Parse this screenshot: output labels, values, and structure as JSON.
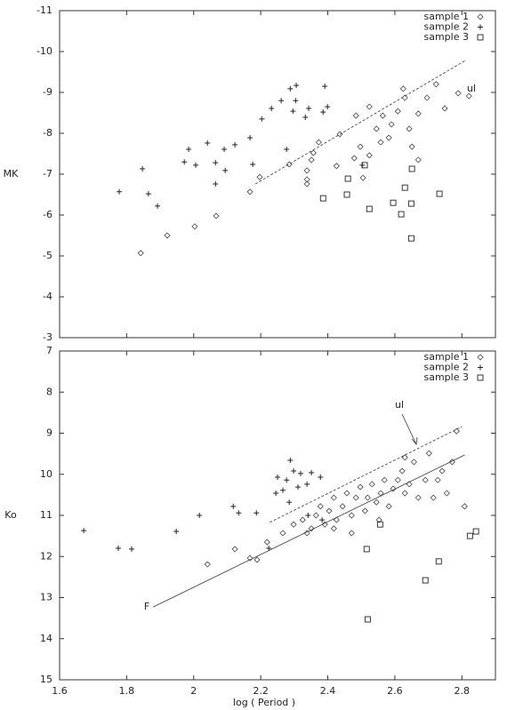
{
  "chart_data": [
    {
      "type": "scatter",
      "y_label": "MK",
      "xlim": [
        1.6,
        2.9
      ],
      "ylim": [
        -3,
        -11
      ],
      "yticks": [
        -11,
        -10,
        -9,
        -8,
        -7,
        -6,
        -5,
        -4,
        -3
      ],
      "legend": "top-right",
      "series": [
        {
          "name": "sample 1",
          "marker": "diamond",
          "color": "#444444",
          "x": [
            1.842,
            1.921,
            2.003,
            2.067,
            2.168,
            2.197,
            2.285,
            2.338,
            2.357,
            2.373,
            2.338,
            2.426,
            2.436,
            2.479,
            2.484,
            2.497,
            2.524,
            2.524,
            2.545,
            2.558,
            2.564,
            2.582,
            2.59,
            2.609,
            2.63,
            2.643,
            2.651,
            2.67,
            2.696,
            2.723,
            2.749,
            2.789,
            2.821,
            2.625,
            2.67,
            2.505,
            2.351,
            2.338
          ],
          "values": [
            -5.07,
            -5.5,
            -5.72,
            -5.98,
            -6.57,
            -6.93,
            -7.24,
            -7.09,
            -7.52,
            -7.78,
            -6.87,
            -7.2,
            -7.98,
            -7.39,
            -8.43,
            -7.67,
            -7.46,
            -8.65,
            -8.11,
            -7.78,
            -8.43,
            -7.89,
            -8.22,
            -8.54,
            -8.87,
            -8.11,
            -7.67,
            -8.48,
            -8.87,
            -9.2,
            -8.61,
            -8.98,
            -8.91,
            -9.09,
            -7.35,
            -6.91,
            -7.35,
            -6.76
          ]
        },
        {
          "name": "sample 2",
          "marker": "plus",
          "color": "#222222",
          "x": [
            1.778,
            1.847,
            1.865,
            1.892,
            1.972,
            1.985,
            2.006,
            2.041,
            2.065,
            2.065,
            2.091,
            2.094,
            2.123,
            2.168,
            2.176,
            2.203,
            2.232,
            2.261,
            2.277,
            2.288,
            2.296,
            2.304,
            2.306,
            2.333,
            2.343,
            2.386,
            2.391,
            2.399,
            2.503
          ],
          "values": [
            -6.57,
            -7.13,
            -6.52,
            -6.22,
            -7.3,
            -7.61,
            -7.22,
            -7.76,
            -7.28,
            -6.76,
            -7.61,
            -7.09,
            -7.72,
            -7.89,
            -7.24,
            -8.35,
            -8.61,
            -8.8,
            -7.61,
            -9.09,
            -8.54,
            -8.8,
            -9.17,
            -8.39,
            -8.61,
            -8.52,
            -9.15,
            -8.65,
            -7.22
          ]
        },
        {
          "name": "sample 3",
          "marker": "square",
          "color": "#222222",
          "x": [
            2.386,
            2.46,
            2.457,
            2.524,
            2.595,
            2.619,
            2.63,
            2.649,
            2.651,
            2.649,
            2.733,
            2.51
          ],
          "values": [
            -6.41,
            -6.89,
            -6.5,
            -6.15,
            -6.3,
            -6.02,
            -6.67,
            -6.28,
            -7.13,
            -5.43,
            -6.52,
            -7.22
          ]
        }
      ],
      "lines": [
        {
          "label": "ul",
          "dash": true,
          "x": [
            2.184,
            2.81
          ],
          "y": [
            -6.76,
            -9.78
          ]
        }
      ]
    },
    {
      "type": "scatter",
      "x_label": "log ( Period )",
      "y_label": "Ko",
      "xlim": [
        1.6,
        2.9
      ],
      "ylim": [
        15,
        7
      ],
      "xticks": [
        1.6,
        1.8,
        2.0,
        2.2,
        2.4,
        2.6,
        2.8
      ],
      "yticks": [
        7,
        8,
        9,
        10,
        11,
        12,
        13,
        14,
        15
      ],
      "legend": "top-right",
      "series": [
        {
          "name": "sample 1",
          "marker": "diamond",
          "color": "#444444",
          "x": [
            2.041,
            2.123,
            2.168,
            2.189,
            2.219,
            2.266,
            2.298,
            2.325,
            2.351,
            2.365,
            2.378,
            2.391,
            2.404,
            2.418,
            2.426,
            2.444,
            2.457,
            2.471,
            2.484,
            2.497,
            2.511,
            2.519,
            2.532,
            2.545,
            2.558,
            2.569,
            2.582,
            2.595,
            2.609,
            2.622,
            2.63,
            2.643,
            2.657,
            2.67,
            2.691,
            2.702,
            2.715,
            2.728,
            2.741,
            2.755,
            2.771,
            2.784,
            2.808,
            2.63,
            2.418,
            2.471,
            2.553,
            2.338
          ],
          "values": [
            12.19,
            11.82,
            12.04,
            12.08,
            11.65,
            11.43,
            11.22,
            11.11,
            11.32,
            11.0,
            10.78,
            11.22,
            10.89,
            10.57,
            11.11,
            10.78,
            10.46,
            11.0,
            10.57,
            10.31,
            10.89,
            10.57,
            10.24,
            10.68,
            10.46,
            10.14,
            10.78,
            10.35,
            10.14,
            9.92,
            10.46,
            10.24,
            9.7,
            10.57,
            10.14,
            9.49,
            10.57,
            10.14,
            9.92,
            10.46,
            9.7,
            8.95,
            10.78,
            9.59,
            11.32,
            11.43,
            11.11,
            11.43
          ]
        },
        {
          "name": "sample 2",
          "marker": "plus",
          "color": "#222222",
          "x": [
            1.672,
            1.775,
            1.815,
            1.948,
            2.017,
            2.118,
            2.134,
            2.187,
            2.224,
            2.245,
            2.25,
            2.266,
            2.277,
            2.285,
            2.288,
            2.298,
            2.311,
            2.319,
            2.338,
            2.341,
            2.351,
            2.378,
            2.383
          ],
          "values": [
            11.37,
            11.8,
            11.82,
            11.39,
            11.0,
            10.78,
            10.94,
            10.94,
            11.8,
            10.46,
            10.07,
            10.39,
            10.14,
            10.68,
            9.66,
            9.92,
            10.31,
            9.98,
            10.24,
            11.0,
            9.96,
            10.07,
            11.11
          ]
        },
        {
          "name": "sample 3",
          "marker": "square",
          "color": "#222222",
          "x": [
            2.516,
            2.519,
            2.556,
            2.691,
            2.731,
            2.824,
            2.842
          ],
          "values": [
            11.82,
            13.53,
            11.22,
            12.58,
            12.12,
            11.5,
            11.39
          ]
        }
      ],
      "lines": [
        {
          "label": "ul",
          "dash": true,
          "x": [
            2.227,
            2.8
          ],
          "y": [
            11.17,
            8.84
          ]
        },
        {
          "label": "F",
          "dash": false,
          "x": [
            1.879,
            2.808
          ],
          "y": [
            13.23,
            9.53
          ]
        }
      ]
    }
  ]
}
